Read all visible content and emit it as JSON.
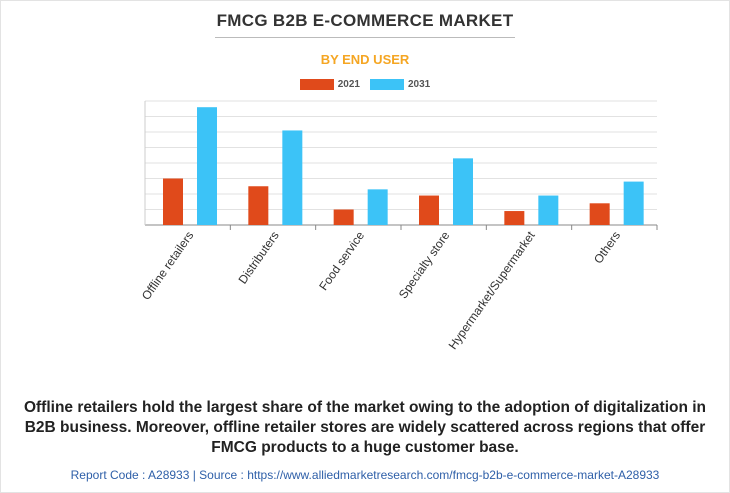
{
  "header": {
    "title": "FMCG B2B E-COMMERCE MARKET",
    "subtitle": "BY END USER"
  },
  "chart_data": {
    "type": "bar",
    "categories": [
      "Offline retailers",
      "Distributers",
      "Food service",
      "Specialty store",
      "Hypermarket/Supermarket",
      "Others"
    ],
    "series": [
      {
        "name": "2021",
        "color": "#e04a1b",
        "values": [
          3.0,
          2.5,
          1.0,
          1.9,
          0.9,
          1.4
        ]
      },
      {
        "name": "2031",
        "color": "#3cc3f7",
        "values": [
          7.6,
          6.1,
          2.3,
          4.3,
          1.9,
          2.8
        ]
      }
    ],
    "ylim": [
      0,
      8
    ],
    "gridlines": 8,
    "grid": true,
    "legend_position": "top-center",
    "xlabel": "",
    "ylabel": ""
  },
  "caption": "Offline retailers hold the largest share of the market owing to the adoption of digitalization in B2B business. Moreover, offline retailer stores are widely scattered across regions that offer FMCG products to a huge customer base.",
  "footer": {
    "text": "Report Code : A28933  |  Source : https://www.alliedmarketresearch.com/fmcg-b2b-e-commerce-market-A28933"
  }
}
